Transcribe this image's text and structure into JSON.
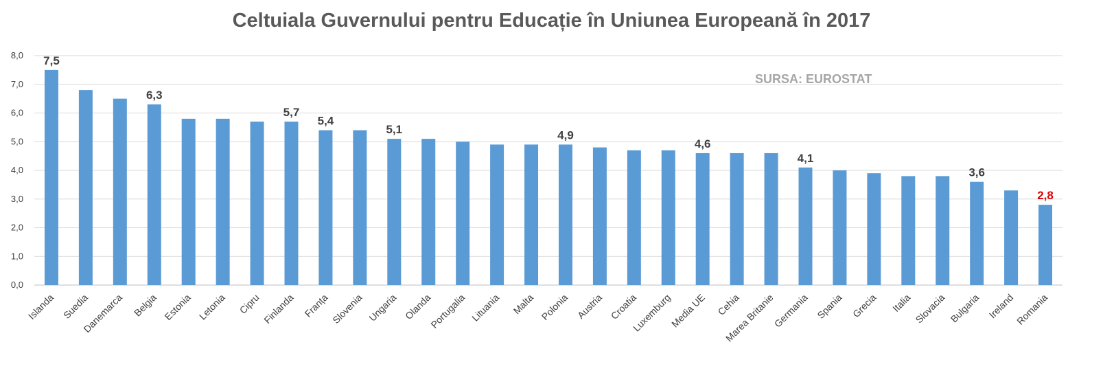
{
  "chart_data": {
    "type": "bar",
    "title": "Celtuiala Guvernului pentru Educație în Uniunea Europeană în 2017",
    "source_note": "SURSA: EUROSTAT",
    "xlabel": "",
    "ylabel": "",
    "ylim": [
      0,
      8
    ],
    "y_ticks": [
      "0,0",
      "1,0",
      "2,0",
      "3,0",
      "4,0",
      "5,0",
      "6,0",
      "7,0",
      "8,0"
    ],
    "grid": true,
    "legend": "none",
    "bar_color": "#5b9bd5",
    "label_color": "#404040",
    "highlight_color": "#e00000",
    "categories": [
      "Islanda",
      "Suedia",
      "Danemarca",
      "Belgia",
      "Estonia",
      "Letonia",
      "Cipru",
      "Finlanda",
      "Franța",
      "Slovenia",
      "Ungaria",
      "Olanda",
      "Portugalia",
      "Lituania",
      "Malta",
      "Polonia",
      "Austria",
      "Croatia",
      "Luxemburg",
      "Media UE",
      "Cehia",
      "Marea Britanie",
      "Germania",
      "Spania",
      "Grecia",
      "Italia",
      "Slovacia",
      "Bulgaria",
      "Ireland",
      "Romania"
    ],
    "values": [
      7.5,
      6.8,
      6.5,
      6.3,
      5.8,
      5.8,
      5.7,
      5.7,
      5.4,
      5.4,
      5.1,
      5.1,
      5.0,
      4.9,
      4.9,
      4.9,
      4.8,
      4.7,
      4.7,
      4.6,
      4.6,
      4.6,
      4.1,
      4.0,
      3.9,
      3.8,
      3.8,
      3.6,
      3.3,
      2.8
    ],
    "data_labels": [
      {
        "category": "Islanda",
        "text": "7,5"
      },
      {
        "category": "Belgia",
        "text": "6,3"
      },
      {
        "category": "Finlanda",
        "text": "5,7"
      },
      {
        "category": "Franța",
        "text": "5,4"
      },
      {
        "category": "Ungaria",
        "text": "5,1"
      },
      {
        "category": "Polonia",
        "text": "4,9"
      },
      {
        "category": "Media UE",
        "text": "4,6"
      },
      {
        "category": "Germania",
        "text": "4,1"
      },
      {
        "category": "Bulgaria",
        "text": "3,6"
      },
      {
        "category": "Romania",
        "text": "2,8",
        "highlight": true
      }
    ]
  }
}
